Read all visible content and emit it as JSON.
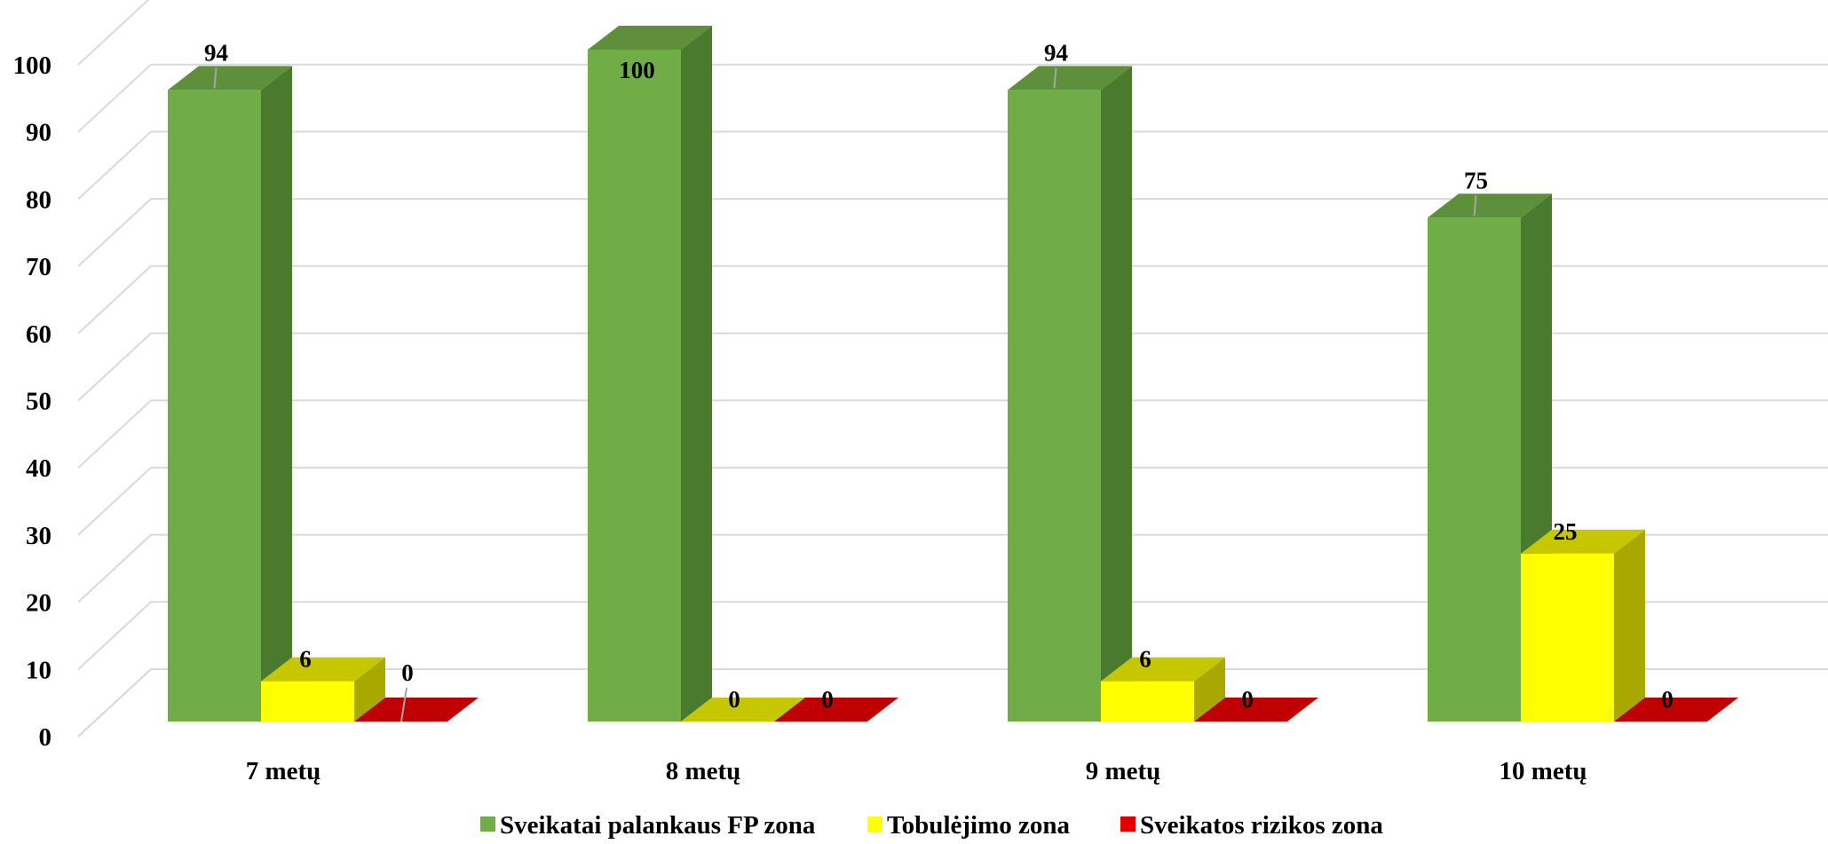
{
  "chart_data": {
    "type": "bar",
    "style": "3d-clustered-column",
    "categories": [
      "7 metų",
      "8 metų",
      "9 metų",
      "10 metų"
    ],
    "series": [
      {
        "name": "Sveikatai palankaus FP zona",
        "values": [
          94,
          100,
          94,
          75
        ],
        "color": "#70ad47",
        "side_color": "#4a7a2e",
        "top_color": "#5e8f3a"
      },
      {
        "name": "Tobulėjimo zona",
        "values": [
          6,
          0,
          6,
          25
        ],
        "color": "#ffff00",
        "side_color": "#a8a800",
        "top_color": "#c7c700"
      },
      {
        "name": "Sveikatos rizikos zona",
        "values": [
          0,
          0,
          0,
          0
        ],
        "color": "#e00000",
        "side_color": "#9a0000",
        "top_color": "#c00000"
      }
    ],
    "y_ticks": [
      "0",
      "10",
      "20",
      "30",
      "40",
      "50",
      "60",
      "70",
      "80",
      "90",
      "100"
    ],
    "ylim": [
      0,
      100
    ],
    "grid": true,
    "legend_position": "bottom",
    "data_labels": [
      [
        "94",
        "100",
        "94",
        "75"
      ],
      [
        "6",
        "0",
        "6",
        "25"
      ],
      [
        "0",
        "0",
        "0",
        "0"
      ]
    ]
  }
}
